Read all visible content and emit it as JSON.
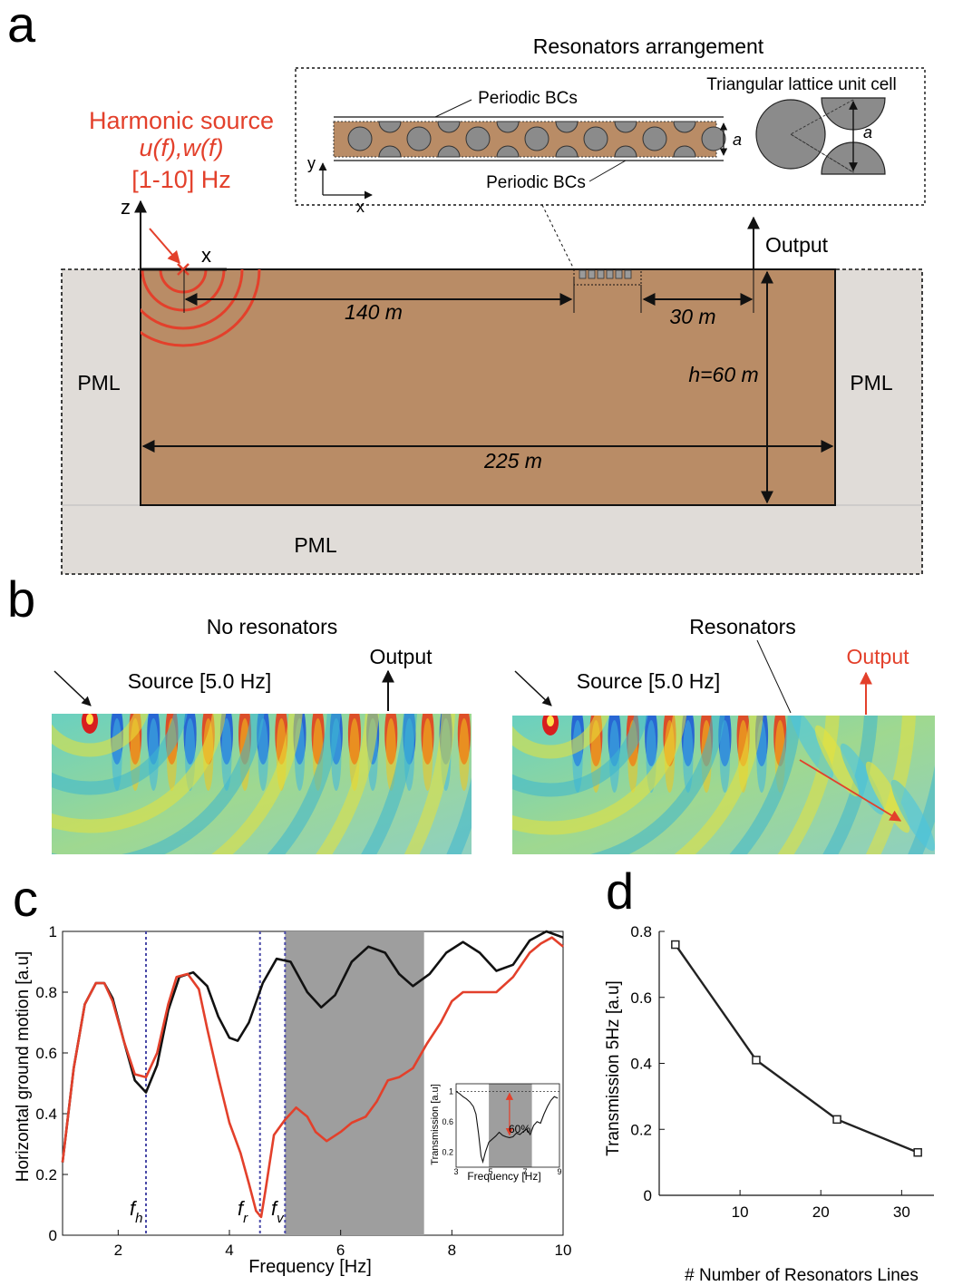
{
  "colors": {
    "soil": "#b98c66",
    "pml": "#e0dcd8",
    "resonator": "#8b8b8b",
    "red": "#e3402b",
    "black": "#111111",
    "gray_band": "#9e9e9e",
    "dotted_blue": "#4a4aa8"
  },
  "panel_a": {
    "letter": "a",
    "arrangement_title": "Resonators arrangement",
    "periodic_top": "Periodic BCs",
    "periodic_bottom": "Periodic BCs",
    "unit_cell_title": "Triangular lattice unit cell",
    "spacing_a": "a",
    "spacing_a2": "a",
    "axis_y": "y",
    "axis_x": "x",
    "source_title": "Harmonic source",
    "source_disp": "u(f),w(f)",
    "source_range": "[1-10] Hz",
    "axis_z": "z",
    "axis_x2": "x",
    "output": "Output",
    "dist_140": "140 m",
    "dist_30": "30 m",
    "depth": "h=60 m",
    "width": "225 m",
    "pml_left": "PML",
    "pml_right": "PML",
    "pml_bottom": "PML"
  },
  "panel_b": {
    "letter": "b",
    "left_title": "No resonators",
    "left_source": "Source [5.0 Hz]",
    "left_output": "Output",
    "right_title": "Resonators",
    "right_source": "Source [5.0 Hz]",
    "right_output": "Output"
  },
  "panel_c": {
    "letter": "c",
    "ylabel": "Horizontal ground motion [a.u]",
    "xlabel": "Frequency [Hz]",
    "marker_fh": "f",
    "marker_fh_sub": "h",
    "marker_fr": "f",
    "marker_fr_sub": "r",
    "marker_fv": "f",
    "marker_fv_sub": "v",
    "inset": {
      "ylabel": "Transmission [a.u]",
      "xlabel": "Frequency [Hz]",
      "annotation": "60%"
    }
  },
  "panel_d": {
    "letter": "d",
    "ylabel": "Transmission 5Hz [a.u]",
    "xlabel": "# Number of Resonators Lines"
  },
  "chart_data": [
    {
      "type": "line",
      "id": "c",
      "xlabel": "Frequency [Hz]",
      "ylabel": "Horizontal ground motion [a.u]",
      "xlim": [
        1,
        10
      ],
      "ylim": [
        0,
        1
      ],
      "xticks": [
        2,
        4,
        6,
        8,
        10
      ],
      "yticks": [
        0,
        0.2,
        0.4,
        0.6,
        0.8,
        1
      ],
      "bandgap": [
        5.0,
        7.5
      ],
      "markers": [
        2.5,
        4.55,
        5.0
      ],
      "series": [
        {
          "color": "#111111",
          "x": [
            1.0,
            1.2,
            1.4,
            1.6,
            1.75,
            1.9,
            2.1,
            2.3,
            2.5,
            2.7,
            2.9,
            3.1,
            3.35,
            3.6,
            3.8,
            4.0,
            4.15,
            4.35,
            4.6,
            4.85,
            5.1,
            5.4,
            5.65,
            5.9,
            6.2,
            6.5,
            6.8,
            7.05,
            7.3,
            7.6,
            7.9,
            8.2,
            8.5,
            8.8,
            9.1,
            9.4,
            9.7,
            10.0
          ],
          "y": [
            0.24,
            0.55,
            0.76,
            0.83,
            0.83,
            0.78,
            0.64,
            0.51,
            0.47,
            0.56,
            0.74,
            0.85,
            0.865,
            0.82,
            0.72,
            0.65,
            0.64,
            0.7,
            0.83,
            0.91,
            0.9,
            0.8,
            0.75,
            0.79,
            0.9,
            0.95,
            0.93,
            0.86,
            0.82,
            0.86,
            0.93,
            0.965,
            0.93,
            0.87,
            0.89,
            0.97,
            1.0,
            0.98
          ]
        },
        {
          "color": "#e3402b",
          "x": [
            1.0,
            1.2,
            1.4,
            1.6,
            1.75,
            1.9,
            2.1,
            2.3,
            2.5,
            2.7,
            2.9,
            3.05,
            3.25,
            3.45,
            3.6,
            3.8,
            4.0,
            4.2,
            4.35,
            4.48,
            4.57,
            4.65,
            4.8,
            5.0,
            5.2,
            5.4,
            5.55,
            5.75,
            6.0,
            6.2,
            6.45,
            6.65,
            6.85,
            7.05,
            7.3,
            7.55,
            7.8,
            8.0,
            8.2,
            8.5,
            8.8,
            9.1,
            9.4,
            9.6,
            9.8,
            10.0
          ],
          "y": [
            0.24,
            0.55,
            0.76,
            0.83,
            0.83,
            0.77,
            0.64,
            0.53,
            0.52,
            0.6,
            0.76,
            0.85,
            0.86,
            0.81,
            0.68,
            0.52,
            0.37,
            0.27,
            0.17,
            0.08,
            0.06,
            0.15,
            0.33,
            0.38,
            0.42,
            0.39,
            0.34,
            0.31,
            0.34,
            0.37,
            0.39,
            0.44,
            0.51,
            0.52,
            0.55,
            0.63,
            0.7,
            0.77,
            0.8,
            0.8,
            0.8,
            0.85,
            0.93,
            0.96,
            0.98,
            0.95
          ]
        }
      ]
    },
    {
      "type": "line",
      "id": "c-inset",
      "xlabel": "Frequency [Hz]",
      "ylabel": "Transmission [a.u]",
      "xlim": [
        3,
        9
      ],
      "ylim": [
        0,
        1.1
      ],
      "xticks": [
        3,
        5,
        7,
        9
      ],
      "yticks": [
        0.2,
        0.6,
        1
      ],
      "bandgap": [
        4.9,
        7.4
      ],
      "reference_level": 1,
      "arrow_at": 6.1,
      "arrow_range": [
        0.4,
        1.0
      ],
      "series": [
        {
          "color": "#111111",
          "x": [
            3.0,
            3.2,
            3.4,
            3.6,
            3.8,
            4.0,
            4.15,
            4.3,
            4.45,
            4.55,
            4.7,
            4.9,
            5.1,
            5.3,
            5.5,
            5.7,
            5.9,
            6.1,
            6.3,
            6.5,
            6.7,
            6.9,
            7.1,
            7.3,
            7.5,
            7.7,
            7.9,
            8.1,
            8.3,
            8.5,
            8.7,
            8.9
          ],
          "y": [
            1.0,
            0.97,
            0.93,
            0.9,
            0.86,
            0.8,
            0.7,
            0.45,
            0.15,
            0.07,
            0.2,
            0.33,
            0.37,
            0.41,
            0.46,
            0.42,
            0.4,
            0.39,
            0.4,
            0.45,
            0.43,
            0.47,
            0.5,
            0.43,
            0.55,
            0.6,
            0.58,
            0.7,
            0.8,
            0.88,
            0.93,
            0.91
          ]
        }
      ]
    },
    {
      "type": "line",
      "id": "d",
      "xlabel": "# Number of Resonators Lines",
      "ylabel": "Transmission 5Hz [a.u]",
      "xlim": [
        0,
        34
      ],
      "ylim": [
        0,
        0.8
      ],
      "xticks": [
        10,
        20,
        30
      ],
      "yticks": [
        0,
        0.2,
        0.4,
        0.6,
        0.8
      ],
      "series": [
        {
          "color": "#222222",
          "x": [
            2,
            12,
            22,
            32
          ],
          "y": [
            0.76,
            0.41,
            0.23,
            0.13
          ]
        }
      ]
    }
  ]
}
